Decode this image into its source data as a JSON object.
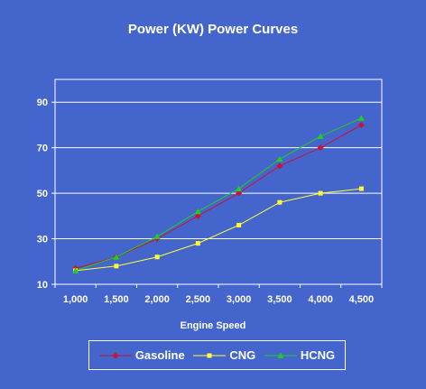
{
  "chart_data": {
    "type": "line",
    "title": "Power (KW)  Power Curves",
    "xlabel": "Engine Speed",
    "ylabel": "",
    "categories": [
      "1,000",
      "1,500",
      "2,000",
      "2,500",
      "3,000",
      "3,500",
      "4,000",
      "4,500"
    ],
    "ylim": [
      10,
      100
    ],
    "yticks": [
      10,
      30,
      50,
      70,
      90
    ],
    "grid": true,
    "legend_position": "bottom",
    "series": [
      {
        "name": "Gasoline",
        "color": "#CC1133",
        "marker": "diamond",
        "values": [
          17,
          22,
          30,
          40,
          50,
          62,
          70,
          80
        ]
      },
      {
        "name": "CNG",
        "color": "#FFFF33",
        "marker": "square",
        "values": [
          16,
          18,
          22,
          28,
          36,
          46,
          50,
          52
        ]
      },
      {
        "name": "HCNG",
        "color": "#22CC22",
        "marker": "triangle",
        "values": [
          16,
          22,
          31,
          42,
          52,
          65,
          75,
          83
        ]
      }
    ]
  }
}
